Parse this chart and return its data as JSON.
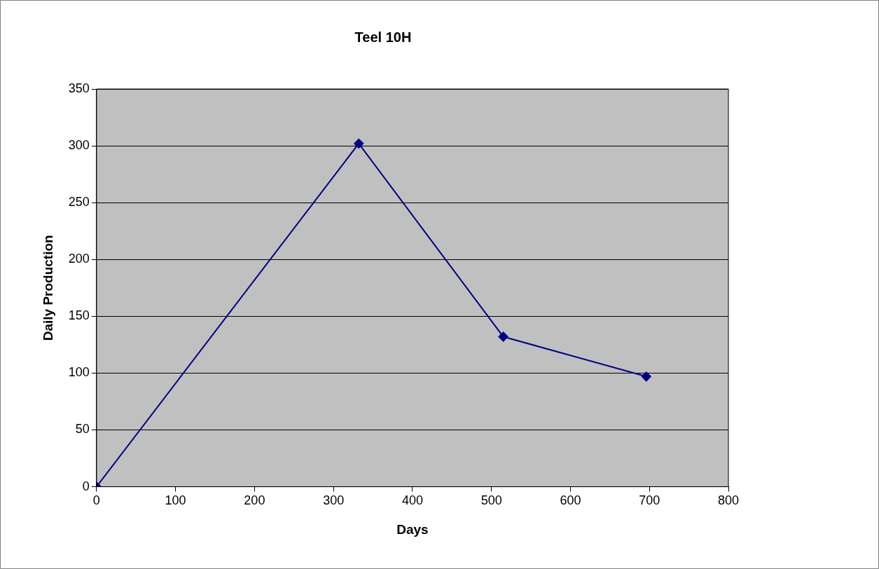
{
  "chart_data": {
    "type": "line",
    "title": "Teel 10H",
    "xlabel": "Days",
    "ylabel": "Daily Production",
    "x": [
      0,
      332,
      515,
      696
    ],
    "series": [
      {
        "color": "#000080",
        "values": [
          0,
          302,
          132,
          97
        ]
      }
    ],
    "xlim": [
      0,
      800
    ],
    "xticks": [
      0,
      100,
      200,
      300,
      400,
      500,
      600,
      700,
      800
    ],
    "ylim": [
      0,
      350
    ],
    "yticks": [
      0,
      50,
      100,
      150,
      200,
      250,
      300,
      350
    ],
    "grid": "y",
    "legend": false,
    "marker": "diamond",
    "line_style": "solid"
  }
}
